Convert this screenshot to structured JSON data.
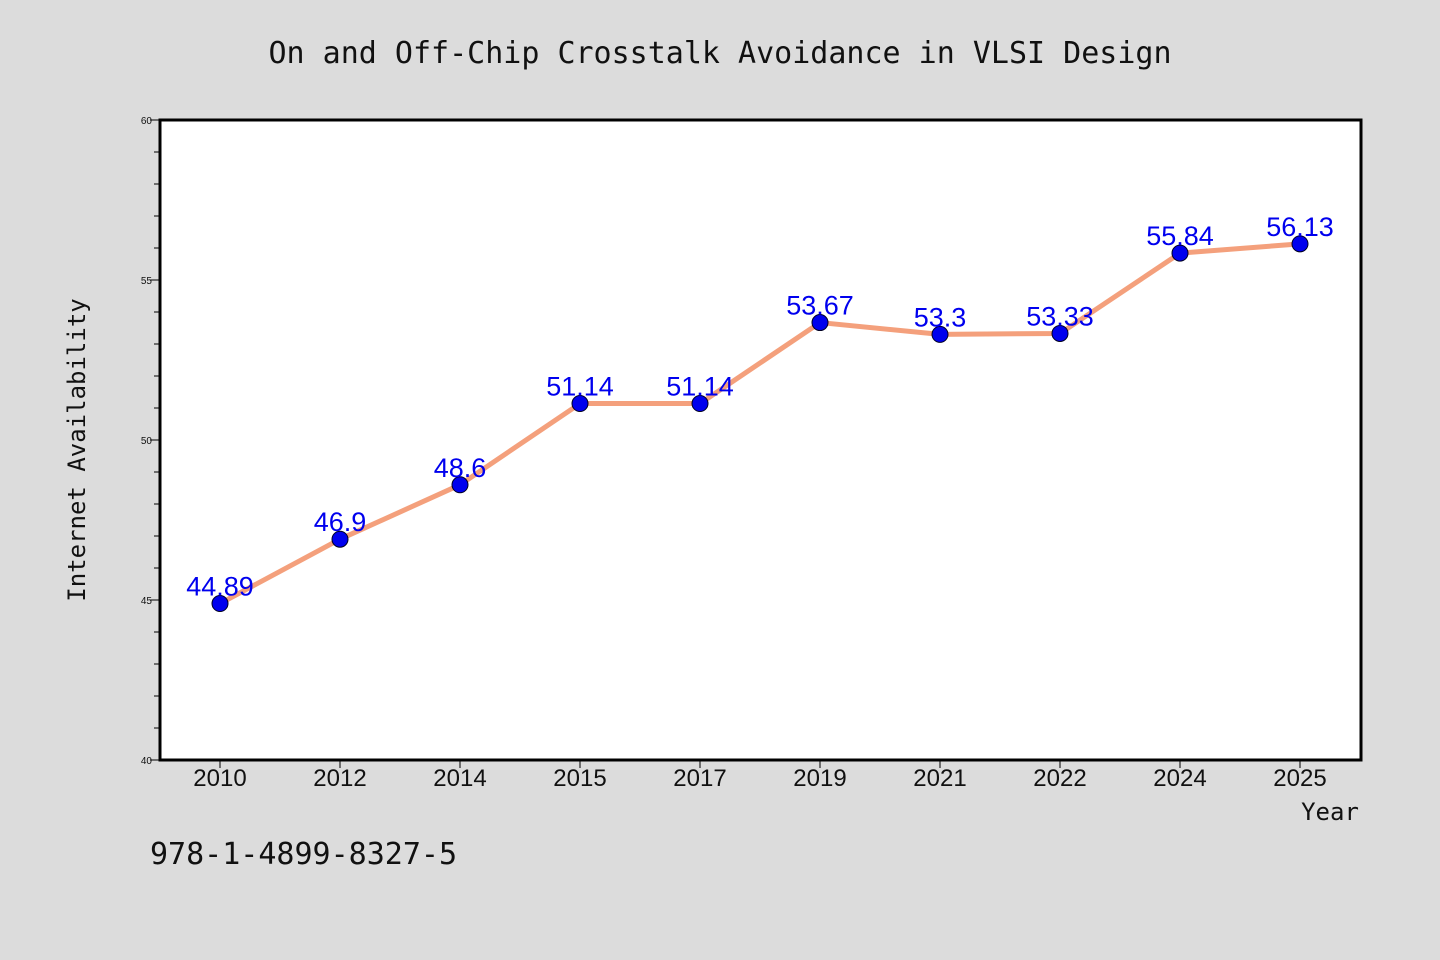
{
  "chart_data": {
    "type": "line",
    "title": "On and Off-Chip Crosstalk Avoidance in VLSI Design",
    "xlabel": "Year",
    "ylabel": "Internet Availability",
    "categories": [
      "2010",
      "2012",
      "2014",
      "2015",
      "2017",
      "2019",
      "2021",
      "2022",
      "2024",
      "2025"
    ],
    "values": [
      44.89,
      46.9,
      48.6,
      51.14,
      51.14,
      53.67,
      53.3,
      53.33,
      55.84,
      56.13
    ],
    "data_labels": [
      "44.89",
      "46.9",
      "48.6",
      "51.14",
      "51.14",
      "53.67",
      "53.3",
      "53.33",
      "55.84",
      "56.13"
    ],
    "ylim": [
      40,
      60
    ],
    "yticks": [
      40,
      45,
      50,
      55,
      60
    ],
    "ytick_labels": [
      "40",
      "45",
      "50",
      "55",
      "60"
    ],
    "grid": false,
    "line_color": "#f4a07c",
    "marker_color": "#0000ee",
    "label_color": "#0000ee"
  },
  "isbn_note": "978-1-4899-8327-5"
}
